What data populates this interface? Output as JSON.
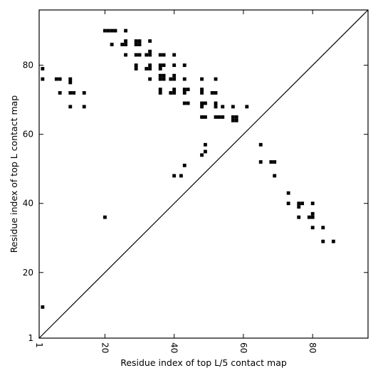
{
  "chart_data": {
    "type": "scatter",
    "title": "",
    "xlabel": "Residue index of top L/5 contact map",
    "ylabel": "Residue index of top L contact map",
    "xlim": [
      1,
      96
    ],
    "ylim": [
      1,
      96
    ],
    "x_ticks": [
      1,
      20,
      40,
      60,
      80
    ],
    "y_ticks": [
      1,
      20,
      40,
      60,
      80
    ],
    "x_tick_labels": [
      "1",
      "20",
      "40",
      "60",
      "80"
    ],
    "y_tick_labels": [
      "1",
      "20",
      "40",
      "60",
      "80"
    ],
    "x_tick_rotation": -90,
    "grid": false,
    "legend": "none",
    "diagonal_line": true,
    "marker": "square",
    "colors": {
      "marker": "#000000",
      "axes": "#000000",
      "background": "#ffffff"
    },
    "series": [
      {
        "points": [
          [
            2,
            79
          ],
          [
            2,
            76
          ],
          [
            2,
            10
          ],
          [
            6,
            76
          ],
          [
            7,
            76
          ],
          [
            7,
            72
          ],
          [
            10,
            76
          ],
          [
            10,
            75
          ],
          [
            10,
            72
          ],
          [
            11,
            72
          ],
          [
            14,
            72
          ],
          [
            10,
            68
          ],
          [
            14,
            68
          ],
          [
            20,
            90
          ],
          [
            21,
            90
          ],
          [
            22,
            90
          ],
          [
            23,
            90
          ],
          [
            26,
            90
          ],
          [
            22,
            86
          ],
          [
            25,
            86
          ],
          [
            26,
            86
          ],
          [
            26,
            87
          ],
          [
            29,
            87
          ],
          [
            29,
            86
          ],
          [
            30,
            87
          ],
          [
            30,
            86
          ],
          [
            33,
            87
          ],
          [
            26,
            83
          ],
          [
            29,
            83
          ],
          [
            30,
            83
          ],
          [
            32,
            83
          ],
          [
            33,
            83
          ],
          [
            33,
            84
          ],
          [
            29,
            80
          ],
          [
            29,
            79
          ],
          [
            32,
            79
          ],
          [
            33,
            79
          ],
          [
            33,
            80
          ],
          [
            33,
            76
          ],
          [
            36,
            83
          ],
          [
            37,
            83
          ],
          [
            40,
            83
          ],
          [
            36,
            80
          ],
          [
            37,
            80
          ],
          [
            36,
            79
          ],
          [
            40,
            80
          ],
          [
            43,
            80
          ],
          [
            36,
            77
          ],
          [
            37,
            77
          ],
          [
            36,
            76
          ],
          [
            37,
            76
          ],
          [
            39,
            76
          ],
          [
            40,
            76
          ],
          [
            40,
            77
          ],
          [
            43,
            76
          ],
          [
            36,
            73
          ],
          [
            36,
            72
          ],
          [
            39,
            72
          ],
          [
            40,
            72
          ],
          [
            40,
            73
          ],
          [
            43,
            73
          ],
          [
            44,
            73
          ],
          [
            43,
            72
          ],
          [
            43,
            69
          ],
          [
            44,
            69
          ],
          [
            48,
            76
          ],
          [
            52,
            76
          ],
          [
            48,
            73
          ],
          [
            48,
            72
          ],
          [
            51,
            72
          ],
          [
            52,
            72
          ],
          [
            48,
            69
          ],
          [
            49,
            69
          ],
          [
            48,
            68
          ],
          [
            52,
            69
          ],
          [
            52,
            68
          ],
          [
            54,
            68
          ],
          [
            57,
            68
          ],
          [
            61,
            68
          ],
          [
            48,
            65
          ],
          [
            49,
            65
          ],
          [
            52,
            65
          ],
          [
            53,
            65
          ],
          [
            54,
            65
          ],
          [
            57,
            65
          ],
          [
            58,
            65
          ],
          [
            57,
            64
          ],
          [
            58,
            64
          ],
          [
            49,
            57
          ],
          [
            49,
            55
          ],
          [
            48,
            54
          ],
          [
            43,
            51
          ],
          [
            40,
            48
          ],
          [
            42,
            48
          ],
          [
            20,
            36
          ],
          [
            65,
            57
          ],
          [
            65,
            52
          ],
          [
            68,
            52
          ],
          [
            69,
            52
          ],
          [
            69,
            48
          ],
          [
            73,
            43
          ],
          [
            73,
            40
          ],
          [
            76,
            40
          ],
          [
            77,
            40
          ],
          [
            76,
            39
          ],
          [
            80,
            40
          ],
          [
            76,
            36
          ],
          [
            79,
            36
          ],
          [
            80,
            36
          ],
          [
            80,
            37
          ],
          [
            80,
            33
          ],
          [
            83,
            33
          ],
          [
            83,
            29
          ],
          [
            86,
            29
          ]
        ]
      }
    ]
  }
}
